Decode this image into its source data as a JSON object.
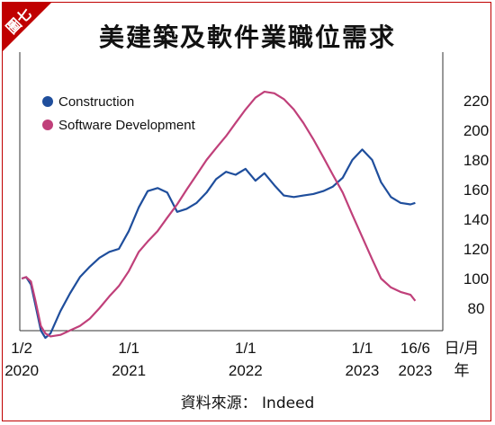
{
  "badge": "圖七",
  "chart_data": {
    "type": "line",
    "title": "美建築及軟件業職位需求",
    "source": "資料來源： Indeed",
    "x_unit_label": "日/月\n年",
    "x_ticks": [
      {
        "date": "2020-02-01",
        "line1": "1/2",
        "line2": "2020"
      },
      {
        "date": "2021-01-01",
        "line1": "1/1",
        "line2": "2021"
      },
      {
        "date": "2022-01-01",
        "line1": "1/1",
        "line2": "2022"
      },
      {
        "date": "2023-01-01",
        "line1": "1/1",
        "line2": "2023"
      },
      {
        "date": "2023-06-16",
        "line1": "16/6",
        "line2": "2023"
      }
    ],
    "ylim": [
      60,
      230
    ],
    "y_ticks": [
      80,
      100,
      120,
      140,
      160,
      180,
      200,
      220
    ],
    "grid": false,
    "legend": "top-left",
    "series": [
      {
        "name": "Construction",
        "color": "#1f4e9c",
        "x": [
          "2020-02-01",
          "2020-02-15",
          "2020-03-01",
          "2020-03-15",
          "2020-04-01",
          "2020-04-15",
          "2020-05-01",
          "2020-06-01",
          "2020-07-01",
          "2020-08-01",
          "2020-09-01",
          "2020-10-01",
          "2020-11-01",
          "2020-12-01",
          "2021-01-01",
          "2021-02-01",
          "2021-03-01",
          "2021-04-01",
          "2021-05-01",
          "2021-06-01",
          "2021-07-01",
          "2021-08-01",
          "2021-09-01",
          "2021-10-01",
          "2021-11-01",
          "2021-12-01",
          "2022-01-01",
          "2022-02-01",
          "2022-03-01",
          "2022-04-01",
          "2022-05-01",
          "2022-06-01",
          "2022-07-01",
          "2022-08-01",
          "2022-09-01",
          "2022-10-01",
          "2022-11-01",
          "2022-12-01",
          "2023-01-01",
          "2023-02-01",
          "2023-03-01",
          "2023-04-01",
          "2023-05-01",
          "2023-06-01",
          "2023-06-16"
        ],
        "values": [
          100,
          101,
          96,
          82,
          65,
          60,
          63,
          78,
          90,
          101,
          108,
          114,
          118,
          120,
          132,
          148,
          159,
          161,
          158,
          145,
          147,
          151,
          158,
          167,
          172,
          170,
          174,
          166,
          171,
          163,
          156,
          155,
          156,
          157,
          159,
          162,
          168,
          180,
          187,
          180,
          165,
          155,
          151,
          150,
          151
        ]
      },
      {
        "name": "Software Development",
        "color": "#c0407a",
        "x": [
          "2020-02-01",
          "2020-02-15",
          "2020-03-01",
          "2020-03-15",
          "2020-04-01",
          "2020-04-15",
          "2020-05-01",
          "2020-06-01",
          "2020-07-01",
          "2020-08-01",
          "2020-09-01",
          "2020-10-01",
          "2020-11-01",
          "2020-12-01",
          "2021-01-01",
          "2021-02-01",
          "2021-03-01",
          "2021-04-01",
          "2021-05-01",
          "2021-06-01",
          "2021-07-01",
          "2021-08-01",
          "2021-09-01",
          "2021-10-01",
          "2021-11-01",
          "2021-12-01",
          "2022-01-01",
          "2022-02-01",
          "2022-03-01",
          "2022-04-01",
          "2022-05-01",
          "2022-06-01",
          "2022-07-01",
          "2022-08-01",
          "2022-09-01",
          "2022-10-01",
          "2022-11-01",
          "2022-12-01",
          "2023-01-01",
          "2023-02-01",
          "2023-03-01",
          "2023-04-01",
          "2023-05-01",
          "2023-06-01",
          "2023-06-16"
        ],
        "values": [
          100,
          101,
          98,
          85,
          68,
          63,
          61,
          62,
          65,
          68,
          73,
          80,
          88,
          95,
          105,
          118,
          125,
          132,
          141,
          150,
          160,
          170,
          180,
          188,
          196,
          205,
          214,
          222,
          226,
          225,
          221,
          214,
          205,
          194,
          182,
          170,
          158,
          143,
          128,
          113,
          100,
          94,
          91,
          89,
          85
        ]
      }
    ]
  }
}
